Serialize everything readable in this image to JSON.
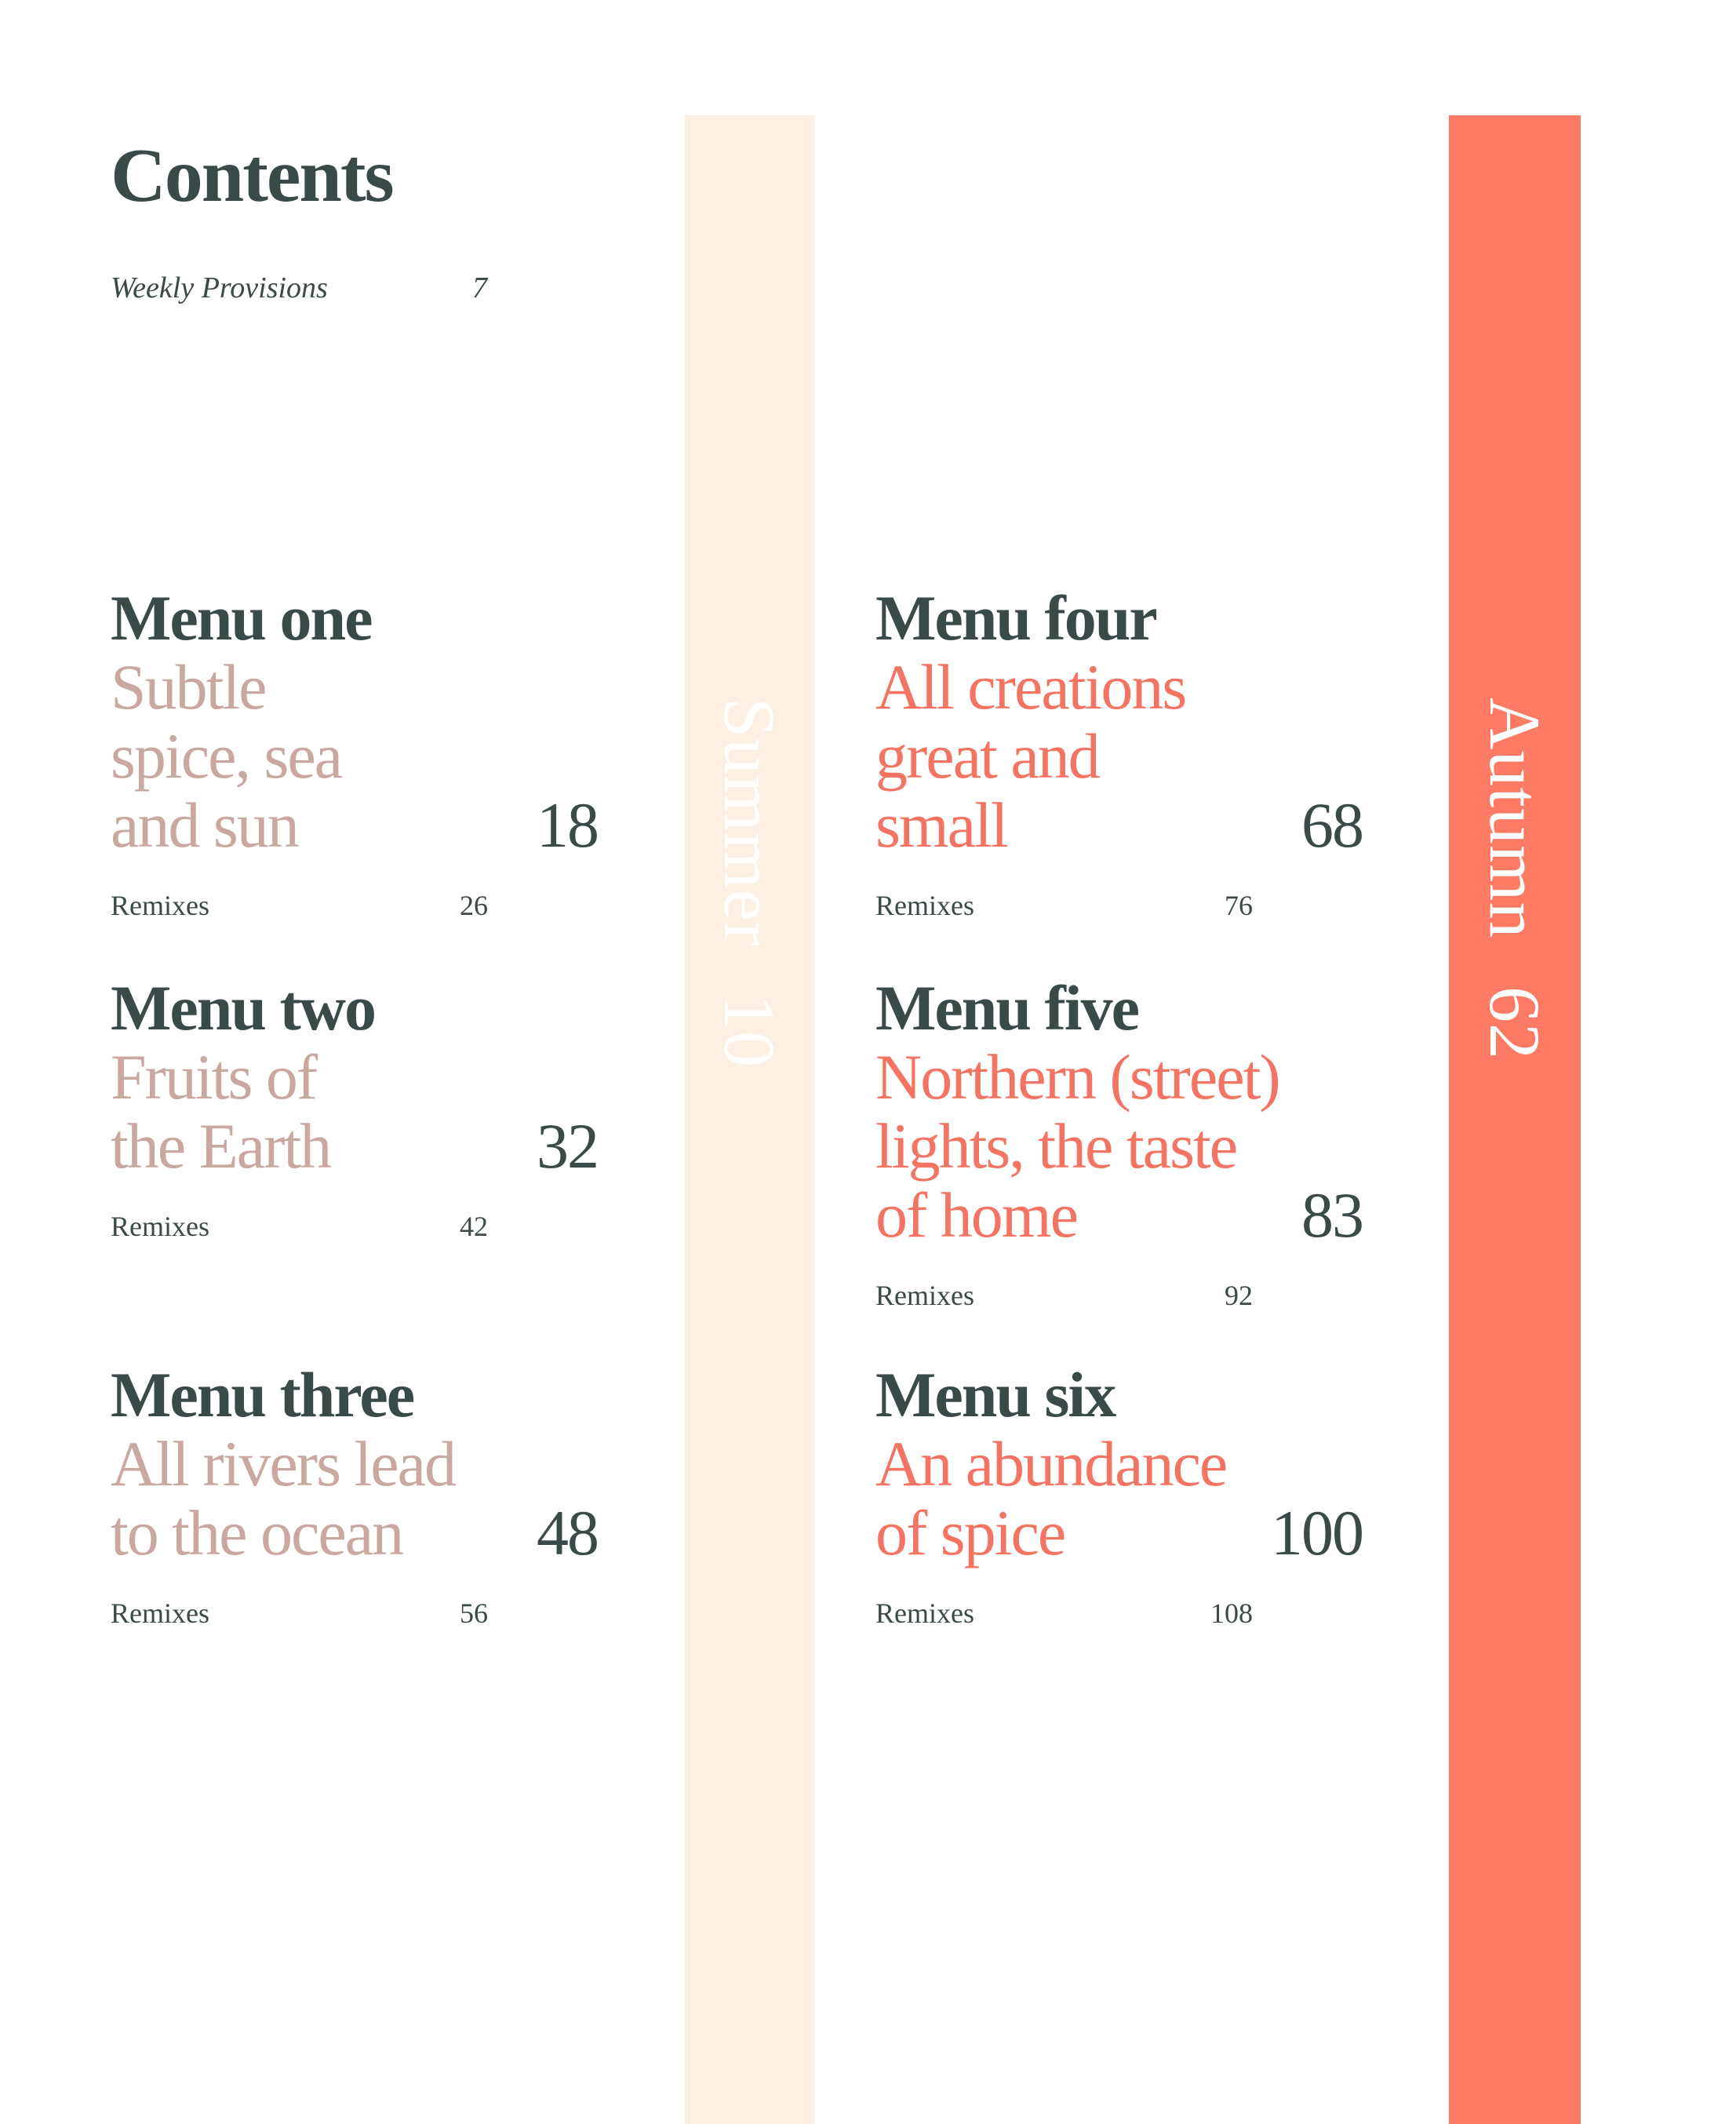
{
  "title": "Contents",
  "weekly": {
    "label": "Weekly Provisions",
    "page": "7"
  },
  "seasons": [
    {
      "name": "Summer",
      "page": "10",
      "color": "#fcf0e4"
    },
    {
      "name": "Autumn",
      "page": "62",
      "color": "#fd7a64"
    }
  ],
  "menus": [
    {
      "title": "Menu one",
      "subtitle": [
        "Subtle",
        "spice, sea",
        "and sun"
      ],
      "page": "18",
      "remix_label": "Remixes",
      "remix_page": "26"
    },
    {
      "title": "Menu two",
      "subtitle": [
        "Fruits of",
        "the Earth"
      ],
      "page": "32",
      "remix_label": "Remixes",
      "remix_page": "42"
    },
    {
      "title": "Menu three",
      "subtitle": [
        "All rivers lead",
        "to the ocean"
      ],
      "page": "48",
      "remix_label": "Remixes",
      "remix_page": "56"
    },
    {
      "title": "Menu four",
      "subtitle": [
        "All creations",
        "great and",
        "small"
      ],
      "page": "68",
      "remix_label": "Remixes",
      "remix_page": "76"
    },
    {
      "title": "Menu five",
      "subtitle": [
        "Northern (street)",
        "lights, the taste",
        "of home"
      ],
      "page": "83",
      "remix_label": "Remixes",
      "remix_page": "92"
    },
    {
      "title": "Menu six",
      "subtitle": [
        "An abundance",
        "of spice"
      ],
      "page": "100",
      "remix_label": "Remixes",
      "remix_page": "108"
    }
  ],
  "colors": {
    "text": "#3a4a48",
    "summer_subtitle": "#c8a8a0",
    "autumn_subtitle": "#f47463"
  }
}
